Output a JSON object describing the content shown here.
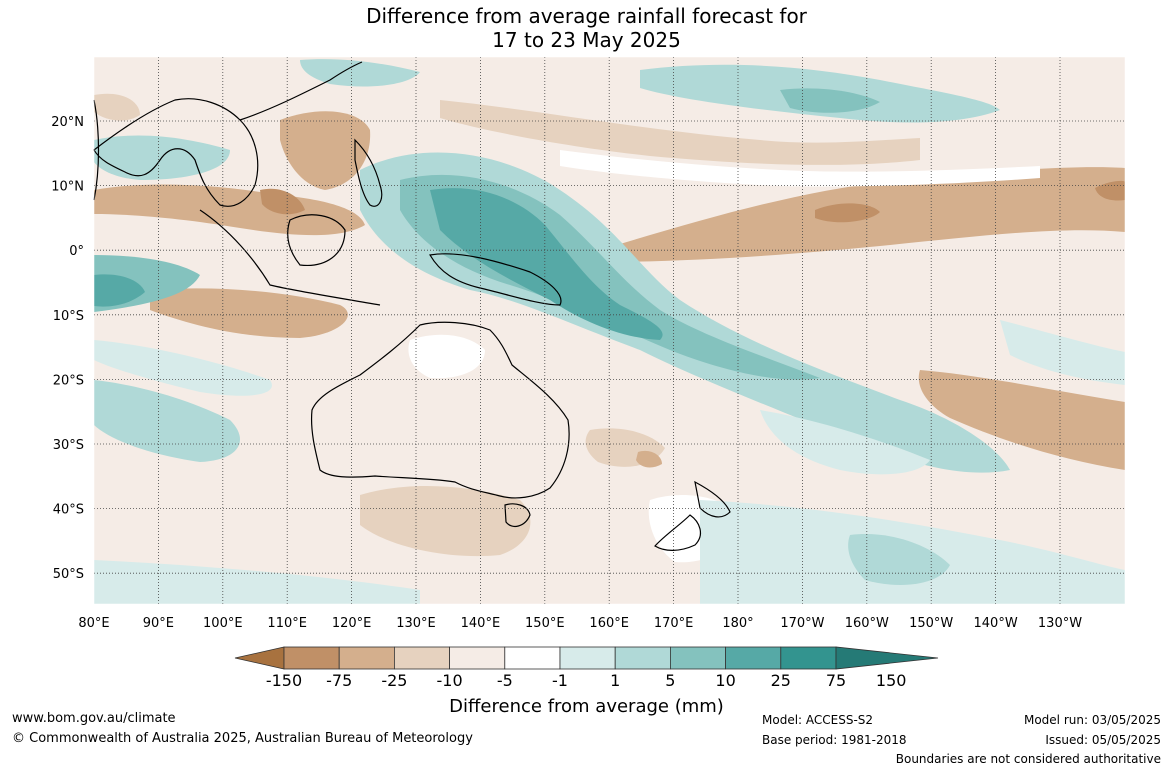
{
  "title_line1": "Difference from average rainfall forecast for",
  "title_line2": "17 to 23 May 2025",
  "lat_labels": [
    "20°N",
    "10°N",
    "0°",
    "10°S",
    "20°S",
    "30°S",
    "40°S",
    "50°S"
  ],
  "lon_labels": [
    "80°E",
    "90°E",
    "100°E",
    "110°E",
    "120°E",
    "130°E",
    "140°E",
    "150°E",
    "160°E",
    "170°E",
    "180°",
    "170°W",
    "160°W",
    "150°W",
    "140°W",
    "130°W"
  ],
  "colorbar": {
    "labels": [
      "-150",
      "-75",
      "-25",
      "-10",
      "-5",
      "-1",
      "1",
      "5",
      "10",
      "25",
      "75",
      "150"
    ],
    "colors": [
      "#a8723f",
      "#c09067",
      "#d4af8d",
      "#e6d2bf",
      "#f5ece6",
      "#ffffff",
      "#d7ebea",
      "#b0d9d7",
      "#84c2be",
      "#56a9a6",
      "#33948f",
      "#257a76"
    ],
    "title": "Difference from average (mm)"
  },
  "footer": {
    "website": "www.bom.gov.au/climate",
    "copyright": "© Commonwealth of Australia 2025, Australian Bureau of Meteorology",
    "model": "Model: ACCESS-S2",
    "base_period": "Base period: 1981-2018",
    "model_run": "Model run: 03/05/2025",
    "issued": "Issued: 05/05/2025",
    "disclaimer": "Boundaries are not considered authoritative"
  }
}
